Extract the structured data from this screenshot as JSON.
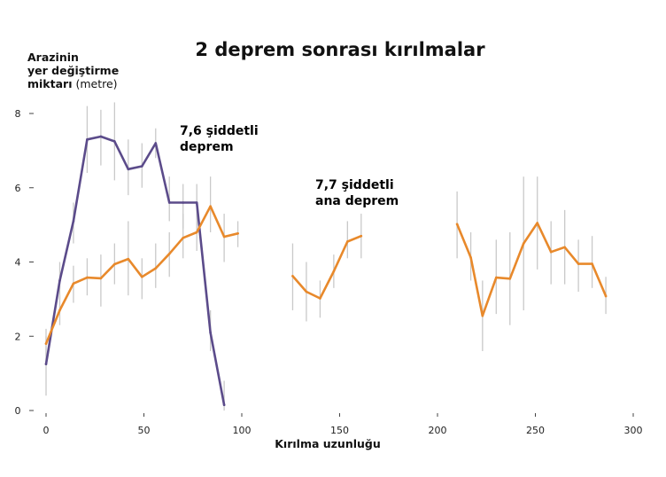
{
  "chart_data": {
    "type": "line",
    "title": "2 deprem sonrası kırılmalar",
    "ylabel_lines": [
      "Arazinin",
      "yer değiştirme"
    ],
    "ylabel_last_bold": "miktarı",
    "ylabel_unit": "(metre)",
    "xlabel": "Kırılma uzunluğu",
    "xlim": [
      0,
      300
    ],
    "ylim": [
      0,
      8
    ],
    "xticks": [
      0,
      50,
      100,
      150,
      200,
      250,
      300
    ],
    "yticks": [
      0,
      2,
      4,
      6,
      8
    ],
    "grid": false,
    "series": [
      {
        "name": "7,6 şiddetli deprem",
        "name_lines": [
          "7,6 şiddetli",
          "deprem"
        ],
        "color": "#5b4b8a",
        "segments": [
          [
            {
              "x": 0,
              "y": 1.25,
              "lo": 0.4,
              "hi": 2.0
            },
            {
              "x": 7,
              "y": 3.5,
              "lo": 3.0,
              "hi": 4.0
            },
            {
              "x": 14,
              "y": 5.1,
              "lo": 4.5,
              "hi": 5.6
            },
            {
              "x": 21,
              "y": 7.3,
              "lo": 6.4,
              "hi": 8.2
            },
            {
              "x": 28,
              "y": 7.38,
              "lo": 6.6,
              "hi": 8.1
            },
            {
              "x": 35,
              "y": 7.25,
              "lo": 6.2,
              "hi": 8.3
            },
            {
              "x": 42,
              "y": 6.5,
              "lo": 5.8,
              "hi": 7.3
            },
            {
              "x": 49,
              "y": 6.58,
              "lo": 6.0,
              "hi": 7.2
            },
            {
              "x": 56,
              "y": 7.2,
              "lo": 6.8,
              "hi": 7.6
            },
            {
              "x": 63,
              "y": 5.6,
              "lo": 5.1,
              "hi": 6.3
            },
            {
              "x": 70,
              "y": 5.6,
              "lo": 4.9,
              "hi": 6.1
            },
            {
              "x": 77,
              "y": 5.6,
              "lo": 5.0,
              "hi": 6.1
            },
            {
              "x": 84,
              "y": 2.1,
              "lo": 1.6,
              "hi": 2.7
            },
            {
              "x": 91,
              "y": 0.15,
              "lo": 0.0,
              "hi": 0.8
            }
          ]
        ]
      },
      {
        "name": "7,7 şiddetli ana deprem",
        "name_lines": [
          "7,7 şiddetli",
          "ana deprem"
        ],
        "color": "#e8892b",
        "segments": [
          [
            {
              "x": 0,
              "y": 1.8,
              "lo": 1.3,
              "hi": 2.2
            },
            {
              "x": 7,
              "y": 2.7,
              "lo": 2.3,
              "hi": 3.1
            },
            {
              "x": 14,
              "y": 3.42,
              "lo": 2.9,
              "hi": 3.9
            },
            {
              "x": 21,
              "y": 3.58,
              "lo": 3.1,
              "hi": 4.1
            },
            {
              "x": 28,
              "y": 3.56,
              "lo": 2.8,
              "hi": 4.2
            },
            {
              "x": 35,
              "y": 3.94,
              "lo": 3.4,
              "hi": 4.5
            },
            {
              "x": 42,
              "y": 4.08,
              "lo": 3.1,
              "hi": 5.1
            },
            {
              "x": 49,
              "y": 3.6,
              "lo": 3.0,
              "hi": 4.1
            },
            {
              "x": 56,
              "y": 3.83,
              "lo": 3.3,
              "hi": 4.5
            },
            {
              "x": 63,
              "y": 4.22,
              "lo": 3.6,
              "hi": 4.8
            },
            {
              "x": 70,
              "y": 4.65,
              "lo": 4.1,
              "hi": 5.3
            },
            {
              "x": 77,
              "y": 4.8,
              "lo": 4.3,
              "hi": 5.3
            },
            {
              "x": 84,
              "y": 5.5,
              "lo": 4.8,
              "hi": 6.3
            },
            {
              "x": 91,
              "y": 4.68,
              "lo": 4.0,
              "hi": 5.3
            },
            {
              "x": 98,
              "y": 4.77,
              "lo": 4.4,
              "hi": 5.1
            }
          ],
          [
            {
              "x": 126,
              "y": 3.62,
              "lo": 2.7,
              "hi": 4.5
            },
            {
              "x": 133,
              "y": 3.2,
              "lo": 2.4,
              "hi": 4.0
            },
            {
              "x": 140,
              "y": 3.02,
              "lo": 2.5,
              "hi": 3.5
            },
            {
              "x": 147,
              "y": 3.75,
              "lo": 3.3,
              "hi": 4.2
            },
            {
              "x": 154,
              "y": 4.55,
              "lo": 4.1,
              "hi": 5.1
            },
            {
              "x": 161,
              "y": 4.7,
              "lo": 4.1,
              "hi": 5.3
            }
          ],
          [
            {
              "x": 210,
              "y": 5.02,
              "lo": 4.1,
              "hi": 5.9
            },
            {
              "x": 217,
              "y": 4.12,
              "lo": 3.5,
              "hi": 4.8
            },
            {
              "x": 223,
              "y": 2.55,
              "lo": 1.6,
              "hi": 3.5
            },
            {
              "x": 230,
              "y": 3.58,
              "lo": 2.6,
              "hi": 4.6
            },
            {
              "x": 237,
              "y": 3.55,
              "lo": 2.3,
              "hi": 4.8
            },
            {
              "x": 244,
              "y": 4.5,
              "lo": 2.7,
              "hi": 6.3
            },
            {
              "x": 251,
              "y": 5.05,
              "lo": 3.8,
              "hi": 6.3
            },
            {
              "x": 258,
              "y": 4.27,
              "lo": 3.4,
              "hi": 5.1
            },
            {
              "x": 265,
              "y": 4.4,
              "lo": 3.4,
              "hi": 5.4
            },
            {
              "x": 272,
              "y": 3.95,
              "lo": 3.2,
              "hi": 4.6
            },
            {
              "x": 279,
              "y": 3.95,
              "lo": 3.3,
              "hi": 4.7
            },
            {
              "x": 286,
              "y": 3.08,
              "lo": 2.6,
              "hi": 3.6
            }
          ]
        ]
      }
    ]
  }
}
